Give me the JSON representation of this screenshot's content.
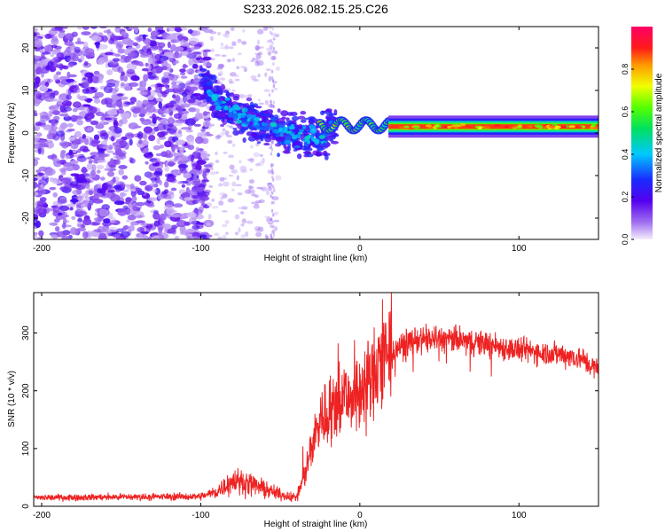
{
  "figure": {
    "title": "S233.2026.082.15.25.C26"
  },
  "chart_data": [
    {
      "type": "heatmap",
      "title": "S233.2026.082.15.25.C26",
      "xlabel": "Height of straight line (km)",
      "ylabel": "Frequency (Hz)",
      "xlim": [
        -205,
        150
      ],
      "ylim": [
        -25,
        25
      ],
      "xticks": [
        -200,
        -100,
        0,
        100
      ],
      "xtick_labels": [
        "-200",
        "-100",
        "0",
        "100"
      ],
      "yticks": [
        -20,
        -10,
        0,
        10,
        20
      ],
      "ytick_labels": [
        "-20",
        "-10",
        "0",
        "10",
        "20"
      ],
      "colorbar": {
        "label": "Normalized spectral amplitude",
        "range": [
          0,
          1
        ],
        "ticks": [
          0.0,
          0.2,
          0.4,
          0.6,
          0.8
        ],
        "tick_labels": [
          "0.0",
          "0.2",
          "0.4",
          "0.6",
          "0.8"
        ],
        "colormap": "rainbow (purple-blue-cyan-green-yellow-red-magenta)"
      },
      "description_of_regions": {
        "noise_region_km": [
          -205,
          -95
        ],
        "transition_region_km": [
          -95,
          -20
        ],
        "signal_band_center_hz": 1.5,
        "signal_band_start_km": 20,
        "signal_band_end_km": 150
      }
    },
    {
      "type": "line",
      "xlabel": "Height of straight line (km)",
      "ylabel": "SNR (10 * v/v)",
      "xlim": [
        -205,
        150
      ],
      "ylim": [
        0,
        370
      ],
      "xticks": [
        -200,
        -100,
        0,
        100
      ],
      "xtick_labels": [
        "-200",
        "-100",
        "0",
        "100"
      ],
      "yticks": [
        0,
        100,
        200,
        300
      ],
      "ytick_labels": [
        "0",
        "100",
        "200",
        "300"
      ],
      "series": [
        {
          "name": "SNR",
          "color": "#ee2222",
          "envelope_x": [
            -205,
            -100,
            -90,
            -80,
            -70,
            -60,
            -50,
            -40,
            -35,
            -30,
            -25,
            -20,
            -15,
            -10,
            -5,
            0,
            5,
            10,
            15,
            20,
            25,
            30,
            40,
            50,
            60,
            70,
            80,
            90,
            100,
            110,
            120,
            130,
            140,
            150
          ],
          "envelope_y": [
            15,
            17,
            25,
            45,
            40,
            30,
            20,
            15,
            50,
            110,
            150,
            160,
            175,
            190,
            195,
            200,
            215,
            230,
            250,
            260,
            275,
            285,
            290,
            290,
            288,
            285,
            282,
            275,
            270,
            268,
            265,
            262,
            255,
            235
          ]
        }
      ]
    }
  ]
}
